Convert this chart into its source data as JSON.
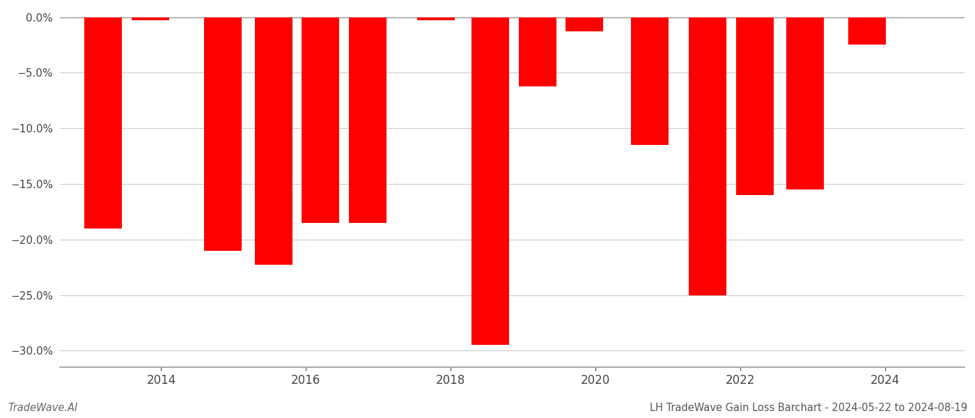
{
  "x_positions": [
    2013.2,
    2013.85,
    2014.85,
    2015.55,
    2016.2,
    2016.85,
    2017.8,
    2018.55,
    2019.2,
    2019.85,
    2020.75,
    2021.55,
    2022.2,
    2022.9,
    2023.75
  ],
  "values": [
    -0.19,
    -0.003,
    -0.21,
    -0.223,
    -0.185,
    -0.185,
    -0.003,
    -0.295,
    -0.062,
    -0.013,
    -0.115,
    -0.25,
    -0.16,
    -0.155,
    -0.025
  ],
  "bar_color": "#ff0000",
  "bar_width": 0.52,
  "ylim_bottom": -0.315,
  "ylim_top": 0.006,
  "yticks": [
    0.0,
    -0.05,
    -0.1,
    -0.15,
    -0.2,
    -0.25,
    -0.3
  ],
  "xtick_positions": [
    2014,
    2016,
    2018,
    2020,
    2022,
    2024
  ],
  "xlim_left": 2012.6,
  "xlim_right": 2025.1,
  "grid_color": "#cccccc",
  "background_color": "#ffffff",
  "spine_color": "#999999",
  "tick_label_color": "#444444",
  "footer_left": "TradeWave.AI",
  "footer_right": "LH TradeWave Gain Loss Barchart - 2024-05-22 to 2024-08-19",
  "footer_fontsize": 10.5,
  "ytick_fontsize": 11,
  "xtick_fontsize": 12
}
